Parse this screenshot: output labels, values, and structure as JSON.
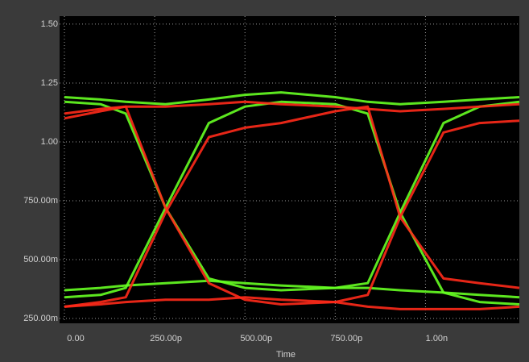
{
  "chart_data": {
    "type": "line",
    "x_label": "Time",
    "x": [
      0,
      1e-10,
      1.7e-10,
      2.8e-10,
      4e-10,
      5e-10,
      6e-10,
      7.5e-10,
      8.4e-10,
      9.3e-10,
      1.05e-09,
      1.15e-09,
      1.26e-09
    ],
    "series": [
      {
        "color": "#66ff22",
        "values": [
          0.34,
          0.35,
          0.38,
          0.72,
          1.08,
          1.15,
          1.17,
          1.16,
          1.12,
          0.7,
          0.36,
          0.32,
          0.31
        ]
      },
      {
        "color": "#66ff22",
        "values": [
          1.17,
          1.16,
          1.12,
          0.72,
          0.42,
          0.38,
          0.37,
          0.38,
          0.4,
          0.7,
          1.08,
          1.15,
          1.17
        ]
      },
      {
        "color": "#66ff22",
        "values": [
          1.19,
          1.18,
          1.17,
          1.16,
          1.18,
          1.2,
          1.21,
          1.19,
          1.17,
          1.16,
          1.17,
          1.18,
          1.19
        ]
      },
      {
        "color": "#66ff22",
        "values": [
          0.37,
          0.38,
          0.39,
          0.4,
          0.41,
          0.4,
          0.39,
          0.38,
          0.38,
          0.37,
          0.36,
          0.35,
          0.34
        ]
      },
      {
        "color": "#ff2a1a",
        "values": [
          1.1,
          1.13,
          1.15,
          0.72,
          0.4,
          0.33,
          0.31,
          0.32,
          0.35,
          0.68,
          1.04,
          1.08,
          1.09
        ]
      },
      {
        "color": "#ff2a1a",
        "values": [
          0.3,
          0.32,
          0.34,
          0.7,
          1.02,
          1.06,
          1.08,
          1.13,
          1.15,
          0.68,
          0.42,
          0.4,
          0.38
        ]
      },
      {
        "color": "#ff2a1a",
        "values": [
          1.12,
          1.14,
          1.15,
          1.15,
          1.16,
          1.17,
          1.16,
          1.15,
          1.14,
          1.13,
          1.14,
          1.15,
          1.16
        ]
      },
      {
        "color": "#ff2a1a",
        "values": [
          0.3,
          0.31,
          0.32,
          0.33,
          0.33,
          0.34,
          0.33,
          0.32,
          0.3,
          0.29,
          0.29,
          0.29,
          0.3
        ]
      }
    ],
    "xlim": [
      0,
      1.26e-09
    ],
    "xticks": [
      {
        "value": 0,
        "label": "0.00"
      },
      {
        "value": 2.5e-10,
        "label": "250.00p"
      },
      {
        "value": 5e-10,
        "label": "500.00p"
      },
      {
        "value": 7.5e-10,
        "label": "750.00p"
      },
      {
        "value": 1e-09,
        "label": "1.00n"
      }
    ],
    "ylim": [
      0.233,
      1.534
    ],
    "yticks": [
      {
        "value": 0.25,
        "label": "250.00m"
      },
      {
        "value": 0.5,
        "label": "500.00m"
      },
      {
        "value": 0.75,
        "label": "750.00m"
      },
      {
        "value": 1.0,
        "label": "1.00"
      },
      1.25,
      {
        "value": 1.5,
        "label": "1.50"
      }
    ],
    "grid": true
  }
}
